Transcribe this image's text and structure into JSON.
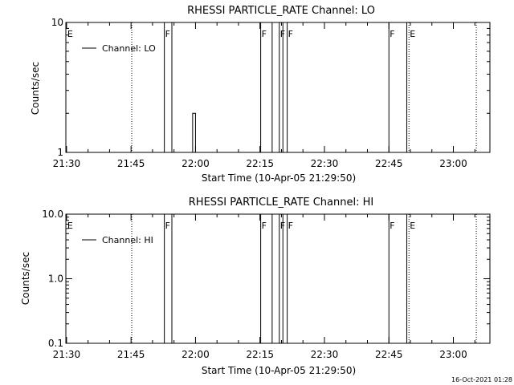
{
  "footer": {
    "timestamp": "16-Oct-2021 01:28"
  },
  "chart_data": [
    {
      "type": "line",
      "title": "RHESSI  PARTICLE_RATE  Channel:  LO",
      "xlabel": "Start Time (10-Apr-05 21:29:50)",
      "ylabel": "Counts/sec",
      "yscale": "log",
      "ylim": [
        1,
        10
      ],
      "ytick_values": [
        1,
        10
      ],
      "ytick_labels": [
        "1",
        "10"
      ],
      "xlim": [
        "21:29:50",
        "23:08:30"
      ],
      "xtick_labels": [
        "21:30",
        "21:45",
        "22:00",
        "22:15",
        "22:30",
        "22:45",
        "23:00"
      ],
      "grid": false,
      "legend": {
        "position": "top-left",
        "entries": [
          "Channel: LO"
        ]
      },
      "series": [
        {
          "name": "Channel: LO",
          "x": [
            "21:59:10",
            "21:59:20",
            "21:59:30",
            "21:59:40",
            "21:59:50",
            "22:00:00"
          ],
          "y": [
            1,
            2,
            2,
            2,
            2,
            1
          ]
        }
      ],
      "annotations": [
        {
          "label": "E",
          "time": "21:30:00",
          "line": "none"
        },
        {
          "label": "F",
          "time": "21:52:45",
          "line": "solid"
        },
        {
          "label": "",
          "time": "21:54:30",
          "line": "solid"
        },
        {
          "label": "F",
          "time": "22:15:10",
          "line": "solid"
        },
        {
          "label": "",
          "time": "22:17:50",
          "line": "solid"
        },
        {
          "label": "F",
          "time": "22:19:30",
          "line": "solid"
        },
        {
          "label": "",
          "time": "22:20:20",
          "line": "solid"
        },
        {
          "label": "F",
          "time": "22:21:20",
          "line": "solid"
        },
        {
          "label": "F",
          "time": "22:45:00",
          "line": "solid"
        },
        {
          "label": "",
          "time": "22:49:10",
          "line": "solid"
        },
        {
          "label": "E",
          "time": "22:49:40",
          "line": "dotted"
        },
        {
          "label": "",
          "time": "21:45:10",
          "line": "dotted"
        },
        {
          "label": "",
          "time": "23:05:20",
          "line": "dotted"
        }
      ]
    },
    {
      "type": "line",
      "title": "RHESSI  PARTICLE_RATE  Channel:  HI",
      "xlabel": "Start Time (10-Apr-05 21:29:50)",
      "ylabel": "Counts/sec",
      "yscale": "log",
      "ylim": [
        0.1,
        10
      ],
      "ytick_values": [
        0.1,
        1,
        10
      ],
      "ytick_labels": [
        "0.1",
        "1.0",
        "10.0"
      ],
      "xlim": [
        "21:29:50",
        "23:08:30"
      ],
      "xtick_labels": [
        "21:30",
        "21:45",
        "22:00",
        "22:15",
        "22:30",
        "22:45",
        "23:00"
      ],
      "grid": false,
      "legend": {
        "position": "top-left",
        "entries": [
          "Channel: HI"
        ]
      },
      "series": [
        {
          "name": "Channel: HI",
          "x": [],
          "y": []
        }
      ],
      "annotations": [
        {
          "label": "E",
          "time": "21:30:00",
          "line": "none"
        },
        {
          "label": "F",
          "time": "21:52:45",
          "line": "solid"
        },
        {
          "label": "",
          "time": "21:54:30",
          "line": "solid"
        },
        {
          "label": "F",
          "time": "22:15:10",
          "line": "solid"
        },
        {
          "label": "",
          "time": "22:17:50",
          "line": "solid"
        },
        {
          "label": "F",
          "time": "22:19:30",
          "line": "solid"
        },
        {
          "label": "",
          "time": "22:20:20",
          "line": "solid"
        },
        {
          "label": "F",
          "time": "22:21:20",
          "line": "solid"
        },
        {
          "label": "F",
          "time": "22:45:00",
          "line": "solid"
        },
        {
          "label": "",
          "time": "22:49:10",
          "line": "solid"
        },
        {
          "label": "E",
          "time": "22:49:40",
          "line": "dotted"
        },
        {
          "label": "",
          "time": "21:45:10",
          "line": "dotted"
        },
        {
          "label": "",
          "time": "23:05:20",
          "line": "dotted"
        }
      ]
    }
  ]
}
